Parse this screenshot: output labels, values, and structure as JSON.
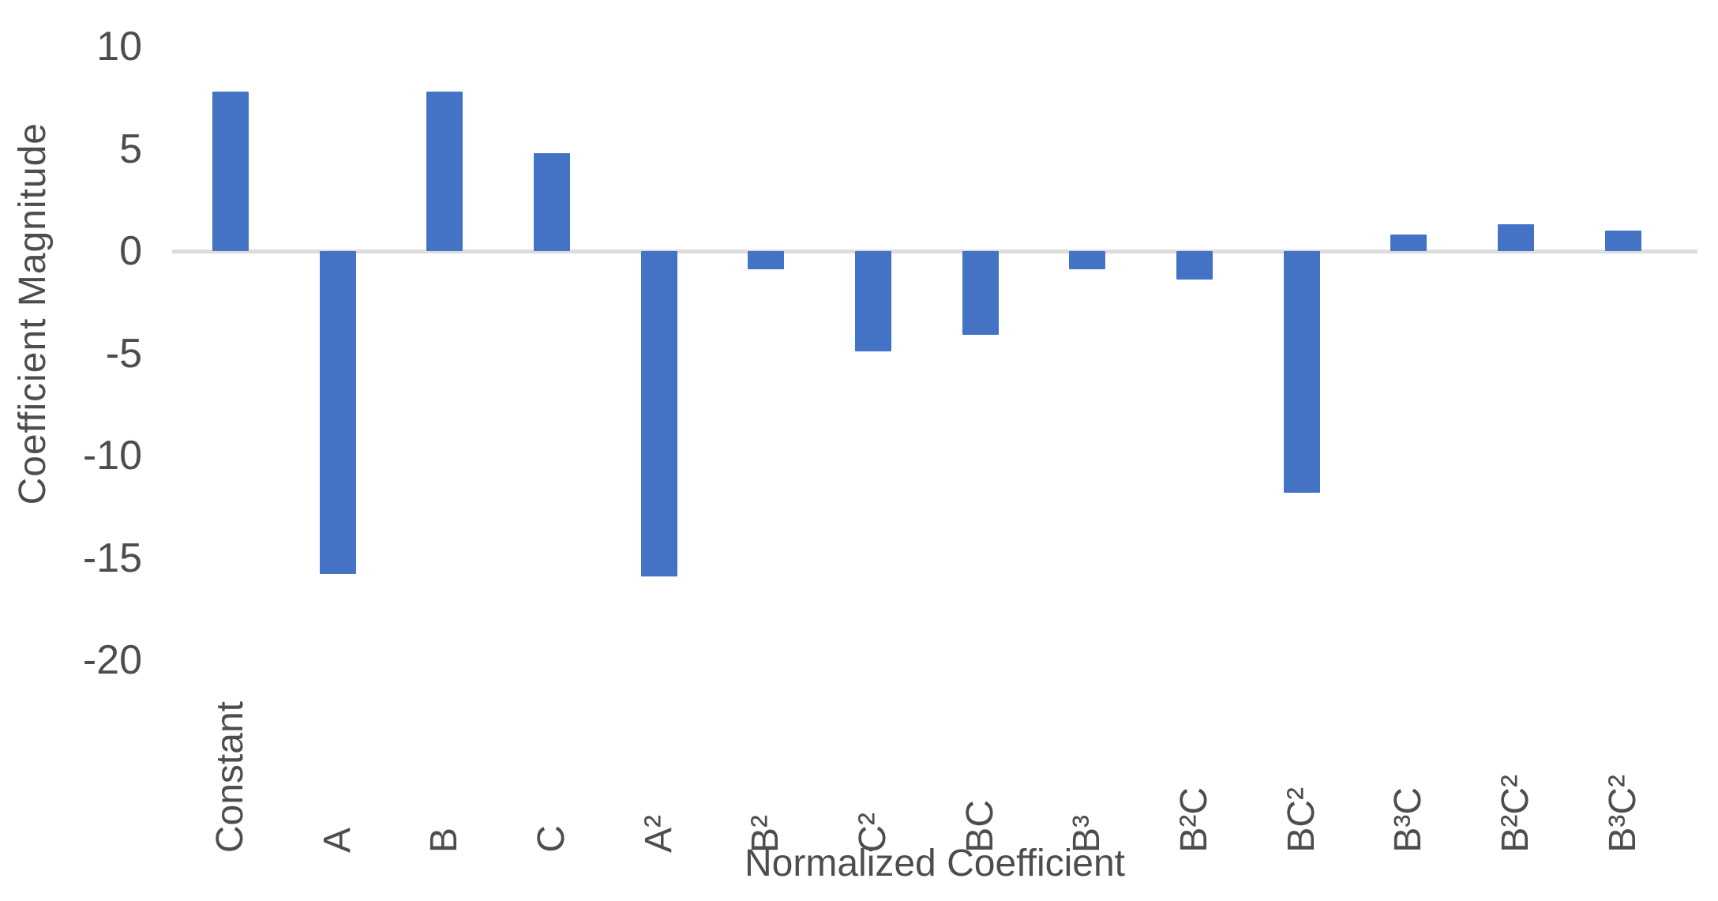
{
  "chart_data": {
    "type": "bar",
    "title": "",
    "xlabel": "Normalized Coefficient",
    "ylabel": "Coefficient Magnitude",
    "categories": [
      "Constant",
      "A",
      "B",
      "C",
      "A²",
      "B²",
      "C²",
      "BC",
      "B³",
      "B²C",
      "BC²",
      "B³C",
      "B²C²",
      "B³C²"
    ],
    "values": [
      7.8,
      -15.8,
      7.8,
      4.8,
      -15.9,
      -0.9,
      -4.9,
      -4.1,
      -0.9,
      -1.4,
      -11.8,
      0.8,
      1.3,
      1.0
    ],
    "yticks": [
      10,
      5,
      0,
      -5,
      -10,
      -15,
      -20
    ],
    "ylim": [
      -20,
      10
    ],
    "grid": "off",
    "legend": "none",
    "series_name": "Coefficient Magnitude"
  },
  "colors": {
    "bar": "#4472C4",
    "axis_line": "#dcdcdc",
    "label_text": "#4d4d4d"
  }
}
